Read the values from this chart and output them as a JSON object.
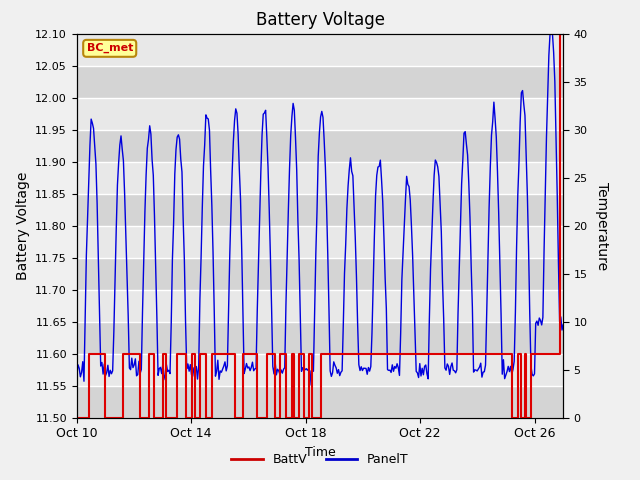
{
  "title": "Battery Voltage",
  "xlabel": "Time",
  "ylabel_left": "Battery Voltage",
  "ylabel_right": "Temperature",
  "ylim_left": [
    11.5,
    12.1
  ],
  "ylim_right": [
    0,
    40
  ],
  "yticks_left": [
    11.5,
    11.55,
    11.6,
    11.65,
    11.7,
    11.75,
    11.8,
    11.85,
    11.9,
    11.95,
    12.0,
    12.05,
    12.1
  ],
  "yticks_right": [
    0,
    5,
    10,
    15,
    20,
    25,
    30,
    35,
    40
  ],
  "xtick_labels": [
    "Oct 10",
    "Oct 14",
    "Oct 18",
    "Oct 22",
    "Oct 26"
  ],
  "xtick_positions": [
    0,
    4,
    8,
    12,
    16
  ],
  "legend_label1": "BattV",
  "legend_label2": "PanelT",
  "legend_color1": "#cc0000",
  "legend_color2": "#0000cc",
  "watermark_text": "BC_met",
  "watermark_bg": "#ffff99",
  "watermark_border": "#b8860b",
  "watermark_text_color": "#cc0000",
  "fig_bg": "#f0f0f0",
  "plot_bg": "#e8e8e8",
  "band_light": "#d4d4d4",
  "grid_color": "#ffffff",
  "batt_color": "#dd0000",
  "panel_color": "#0000dd",
  "n_days": 17,
  "hours_per_day": 24,
  "xlim": [
    0,
    17
  ]
}
